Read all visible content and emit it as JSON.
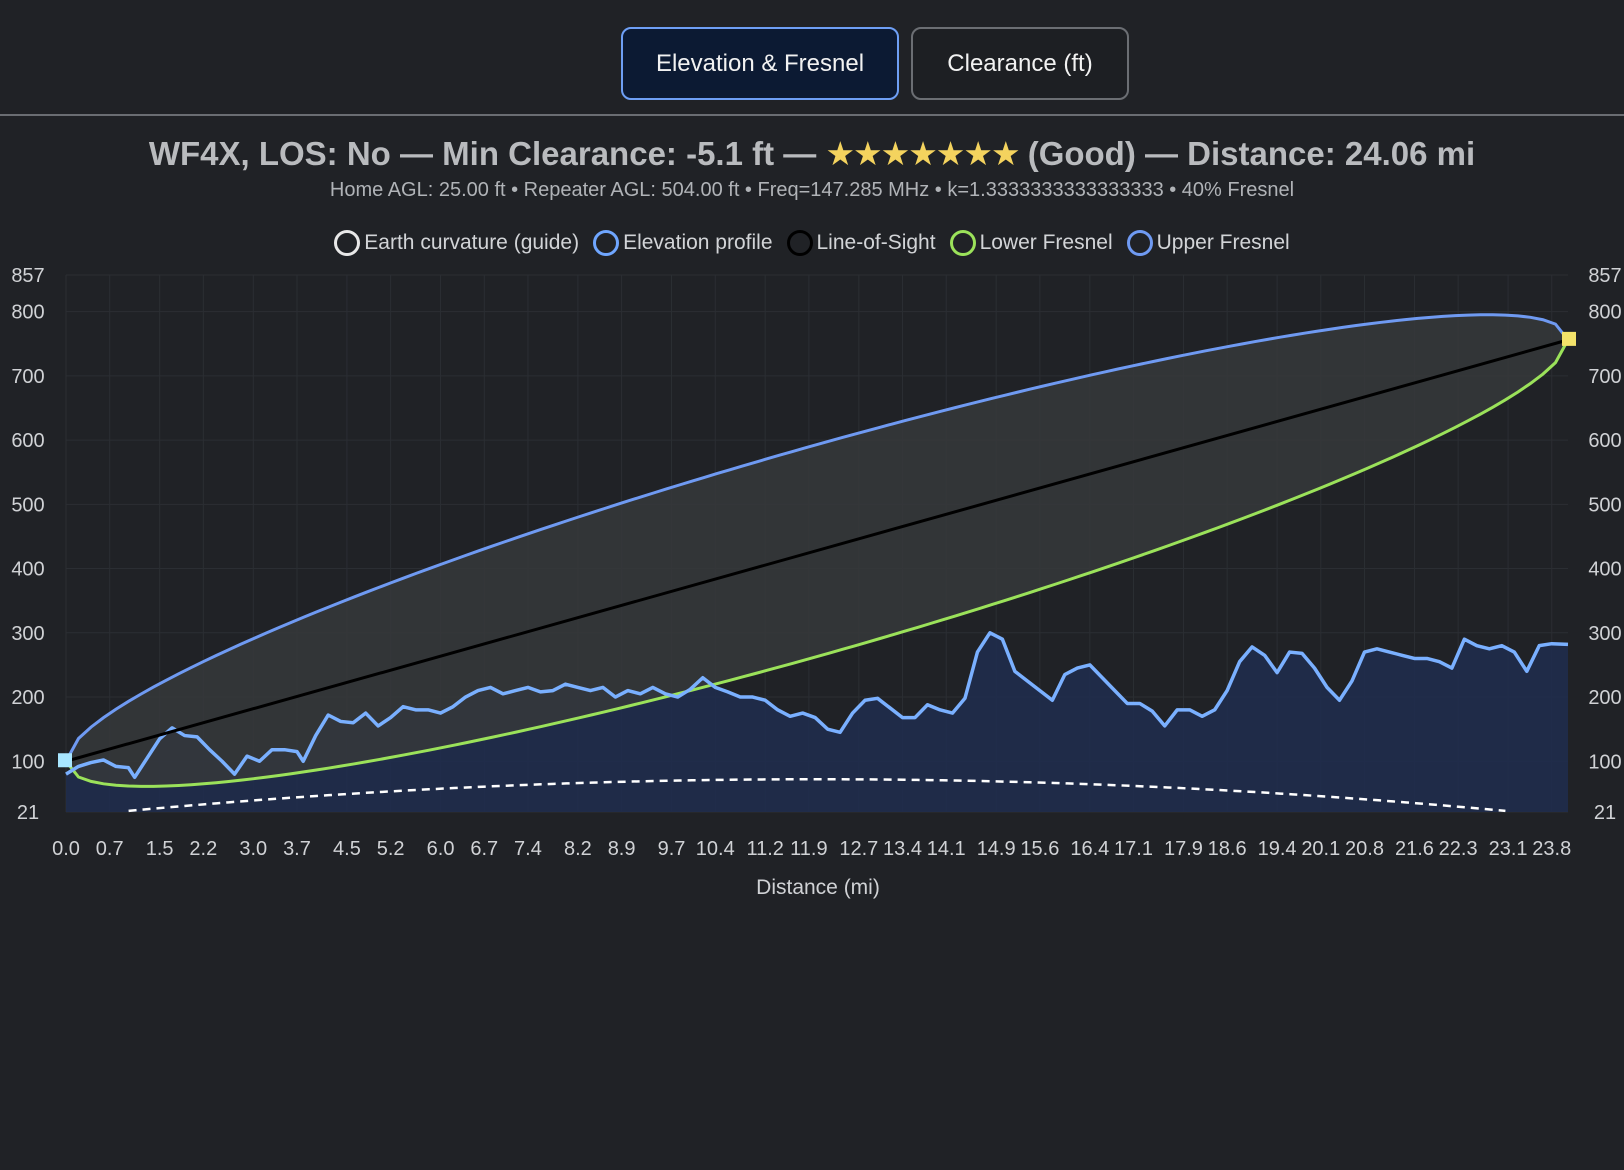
{
  "tabs": [
    {
      "label": "Elevation & Fresnel",
      "active": true
    },
    {
      "label": "Clearance (ft)",
      "active": false
    }
  ],
  "header": {
    "callsign": "WF4X,",
    "los": "LOS: No",
    "min_clearance": "Min Clearance: -5.1 ft",
    "sep": "—",
    "stars": "★★★★★★★",
    "rating": "(Good)",
    "distance": "Distance: 24.06 mi",
    "subtitle": "Home AGL: 25.00 ft • Repeater AGL: 504.00 ft • Freq=147.285 MHz • k=1.3333333333333333 • 40% Fresnel"
  },
  "colors": {
    "earth": "#ffffff",
    "elevation": "#7ab0ff",
    "elevation_fill": "#1f2c4d",
    "los": "#000000",
    "lower_fresnel": "#9be25a",
    "upper_fresnel": "#6f9af2",
    "fresnel_fill": "#36383b",
    "repeater_marker": "#f4e36a",
    "home_marker": "#a8e6ff"
  },
  "legend": [
    {
      "label": "Earth curvature (guide)",
      "color": "#e8e8e8"
    },
    {
      "label": "Elevation profile",
      "color": "#6fa6ff"
    },
    {
      "label": "Line-of-Sight",
      "color": "#000000"
    },
    {
      "label": "Lower Fresnel",
      "color": "#9be25a"
    },
    {
      "label": "Upper Fresnel",
      "color": "#6f9af2"
    }
  ],
  "chart_data": {
    "type": "line",
    "xlabel": "Distance (mi)",
    "ylabel": "",
    "ylim": [
      21,
      857
    ],
    "xlim": [
      0,
      24.06
    ],
    "y_ticks": [
      857,
      800,
      700,
      600,
      500,
      400,
      300,
      200,
      100,
      21
    ],
    "x_ticks": [
      "0.0",
      "0.7",
      "1.5",
      "2.2",
      "3.0",
      "3.7",
      "4.5",
      "5.2",
      "6.0",
      "6.7",
      "7.4",
      "8.2",
      "8.9",
      "9.7",
      "10.4",
      "11.2",
      "11.9",
      "12.7",
      "13.4",
      "14.1",
      "14.9",
      "15.6",
      "16.4",
      "17.1",
      "17.9",
      "18.6",
      "19.4",
      "20.1",
      "20.8",
      "21.6",
      "22.3",
      "23.1",
      "23.8"
    ],
    "grid": true,
    "legend_position": "top",
    "home_height": 100,
    "repeater_height": 756,
    "upper_fresnel_max_offset": 165,
    "series": [
      {
        "name": "Elevation profile",
        "points": [
          [
            0.0,
            80
          ],
          [
            0.2,
            92
          ],
          [
            0.4,
            98
          ],
          [
            0.6,
            102
          ],
          [
            0.8,
            92
          ],
          [
            1.0,
            90
          ],
          [
            1.1,
            75
          ],
          [
            1.3,
            105
          ],
          [
            1.5,
            135
          ],
          [
            1.7,
            152
          ],
          [
            1.9,
            140
          ],
          [
            2.1,
            138
          ],
          [
            2.3,
            118
          ],
          [
            2.5,
            100
          ],
          [
            2.7,
            80
          ],
          [
            2.9,
            108
          ],
          [
            3.1,
            100
          ],
          [
            3.3,
            118
          ],
          [
            3.5,
            118
          ],
          [
            3.7,
            115
          ],
          [
            3.8,
            100
          ],
          [
            4.0,
            140
          ],
          [
            4.2,
            172
          ],
          [
            4.4,
            162
          ],
          [
            4.6,
            160
          ],
          [
            4.8,
            175
          ],
          [
            5.0,
            155
          ],
          [
            5.2,
            168
          ],
          [
            5.4,
            185
          ],
          [
            5.6,
            180
          ],
          [
            5.8,
            180
          ],
          [
            6.0,
            175
          ],
          [
            6.2,
            185
          ],
          [
            6.4,
            200
          ],
          [
            6.6,
            210
          ],
          [
            6.8,
            215
          ],
          [
            7.0,
            205
          ],
          [
            7.2,
            210
          ],
          [
            7.4,
            215
          ],
          [
            7.6,
            208
          ],
          [
            7.8,
            210
          ],
          [
            8.0,
            220
          ],
          [
            8.2,
            215
          ],
          [
            8.4,
            210
          ],
          [
            8.6,
            215
          ],
          [
            8.8,
            200
          ],
          [
            9.0,
            210
          ],
          [
            9.2,
            205
          ],
          [
            9.4,
            215
          ],
          [
            9.6,
            205
          ],
          [
            9.8,
            200
          ],
          [
            10.0,
            212
          ],
          [
            10.2,
            230
          ],
          [
            10.4,
            215
          ],
          [
            10.6,
            208
          ],
          [
            10.8,
            200
          ],
          [
            11.0,
            200
          ],
          [
            11.2,
            195
          ],
          [
            11.4,
            180
          ],
          [
            11.6,
            170
          ],
          [
            11.8,
            175
          ],
          [
            12.0,
            168
          ],
          [
            12.2,
            150
          ],
          [
            12.4,
            145
          ],
          [
            12.6,
            175
          ],
          [
            12.8,
            195
          ],
          [
            13.0,
            198
          ],
          [
            13.2,
            183
          ],
          [
            13.4,
            168
          ],
          [
            13.6,
            168
          ],
          [
            13.8,
            188
          ],
          [
            14.0,
            180
          ],
          [
            14.2,
            175
          ],
          [
            14.4,
            198
          ],
          [
            14.6,
            270
          ],
          [
            14.8,
            300
          ],
          [
            15.0,
            290
          ],
          [
            15.2,
            240
          ],
          [
            15.4,
            225
          ],
          [
            15.6,
            210
          ],
          [
            15.8,
            195
          ],
          [
            16.0,
            235
          ],
          [
            16.2,
            245
          ],
          [
            16.4,
            250
          ],
          [
            16.6,
            230
          ],
          [
            16.8,
            210
          ],
          [
            17.0,
            190
          ],
          [
            17.2,
            190
          ],
          [
            17.4,
            178
          ],
          [
            17.6,
            155
          ],
          [
            17.8,
            180
          ],
          [
            18.0,
            180
          ],
          [
            18.2,
            170
          ],
          [
            18.4,
            180
          ],
          [
            18.6,
            210
          ],
          [
            18.8,
            255
          ],
          [
            19.0,
            278
          ],
          [
            19.2,
            265
          ],
          [
            19.4,
            238
          ],
          [
            19.6,
            270
          ],
          [
            19.8,
            268
          ],
          [
            20.0,
            245
          ],
          [
            20.2,
            215
          ],
          [
            20.4,
            195
          ],
          [
            20.6,
            225
          ],
          [
            20.8,
            270
          ],
          [
            21.0,
            275
          ],
          [
            21.2,
            270
          ],
          [
            21.4,
            265
          ],
          [
            21.6,
            260
          ],
          [
            21.8,
            260
          ],
          [
            22.0,
            255
          ],
          [
            22.2,
            245
          ],
          [
            22.4,
            290
          ],
          [
            22.6,
            280
          ],
          [
            22.8,
            275
          ],
          [
            23.0,
            280
          ],
          [
            23.2,
            270
          ],
          [
            23.4,
            240
          ],
          [
            23.6,
            280
          ],
          [
            23.8,
            283
          ],
          [
            24.06,
            282
          ]
        ]
      },
      {
        "name": "Line-of-Sight"
      },
      {
        "name": "Lower Fresnel"
      },
      {
        "name": "Upper Fresnel"
      },
      {
        "name": "Earth curvature (guide)",
        "peak": 72
      }
    ]
  }
}
